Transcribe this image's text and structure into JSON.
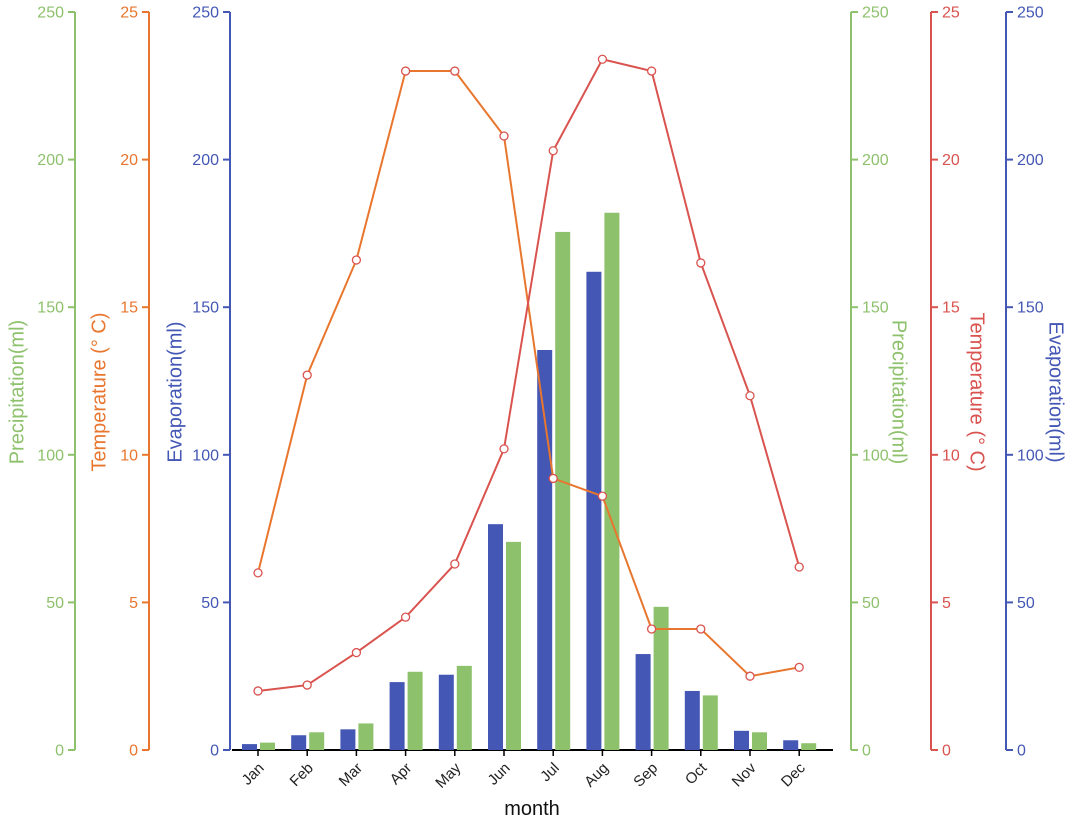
{
  "chart_data": {
    "type": "bar",
    "xlabel": "month",
    "categories": [
      "Jan",
      "Feb",
      "Mar",
      "Apr",
      "May",
      "Jun",
      "Jul",
      "Aug",
      "Sep",
      "Oct",
      "Nov",
      "Dec"
    ],
    "axes": {
      "precipitation_left": {
        "label": "Precipitation(ml)",
        "range": [
          0,
          250
        ],
        "ticks": [
          "0",
          "50",
          "100",
          "150",
          "200",
          "250"
        ],
        "color": "#8ec16c"
      },
      "temperature_left": {
        "label": "Temperature (° C)",
        "range": [
          0,
          25
        ],
        "ticks": [
          "0",
          "5",
          "10",
          "15",
          "20",
          "25"
        ],
        "color": "#e8762e"
      },
      "evaporation_left": {
        "label": "Evaporation(ml)",
        "range": [
          0,
          250
        ],
        "ticks": [
          "0",
          "50",
          "100",
          "150",
          "200",
          "250"
        ],
        "color": "#4457b5"
      },
      "precipitation_right": {
        "label": "Precipitation(ml)",
        "range": [
          0,
          250
        ],
        "ticks": [
          "0",
          "50",
          "100",
          "150",
          "200",
          "250"
        ],
        "color": "#8ec16c"
      },
      "temperature_right": {
        "label": "Temperature (° C)",
        "range": [
          0,
          25
        ],
        "ticks": [
          "0",
          "5",
          "10",
          "15",
          "20",
          "25"
        ],
        "color": "#d9534f"
      },
      "evaporation_right": {
        "label": "Evaporation(ml)",
        "range": [
          0,
          250
        ],
        "ticks": [
          "0",
          "50",
          "100",
          "150",
          "200",
          "250"
        ],
        "color": "#4457b5"
      }
    },
    "series": [
      {
        "type": "bar",
        "axis": "evaporation",
        "color": "#4457b5",
        "values": [
          2,
          5,
          7,
          23,
          25.5,
          76.5,
          135.5,
          162,
          32.5,
          20,
          6.5,
          3.3
        ]
      },
      {
        "type": "bar",
        "axis": "precipitation",
        "color": "#8ec16c",
        "values": [
          2.5,
          6,
          9,
          26.5,
          28.5,
          70.5,
          175.5,
          182,
          48.5,
          18.5,
          6,
          2.3
        ]
      },
      {
        "type": "line",
        "axis": "temperature_left",
        "color": "#e8762e",
        "values": [
          6,
          12.7,
          16.6,
          23,
          23,
          20.8,
          9.2,
          8.6,
          4.1,
          4.1,
          2.5,
          2.8
        ]
      },
      {
        "type": "line",
        "axis": "temperature_right",
        "color": "#d9534f",
        "values": [
          2,
          2.2,
          3.3,
          4.5,
          6.3,
          10.2,
          20.3,
          23.4,
          23,
          16.5,
          12,
          6.2
        ]
      }
    ],
    "grid": false
  }
}
